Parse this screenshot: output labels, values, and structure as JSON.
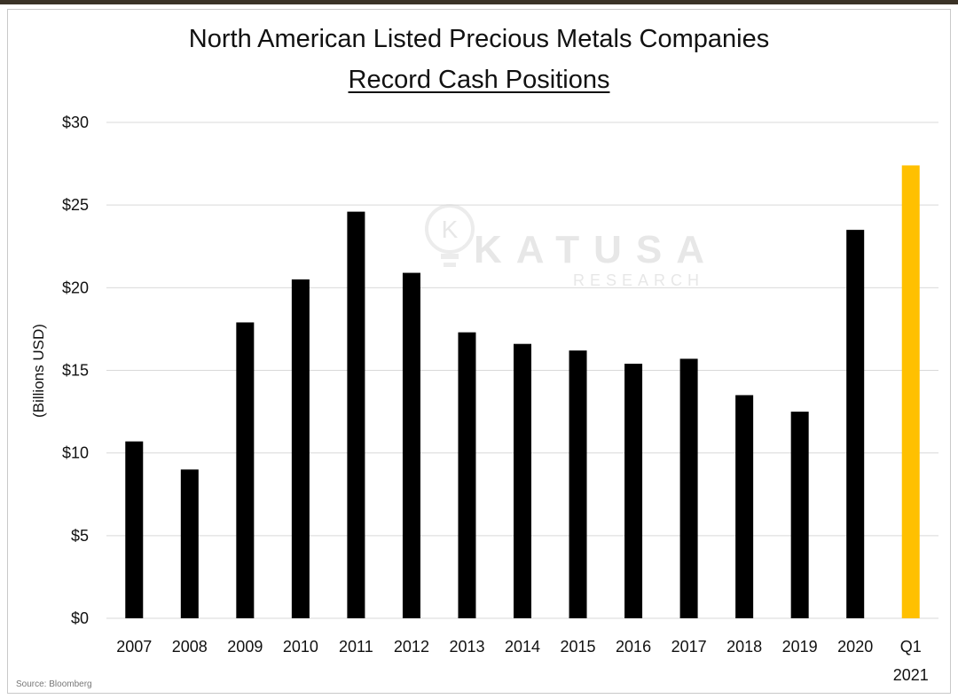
{
  "title_line1": "North American Listed Precious Metals Companies",
  "title_line2": "Record Cash Positions",
  "ylabel": "(Billions USD)",
  "source": "Source: Bloomberg",
  "watermark": {
    "brand": "KATUSA",
    "sub": "RESEARCH",
    "logo_letter": "K"
  },
  "colors": {
    "bar": "#000000",
    "highlight": "#ffc000",
    "grid": "#d9d9d9"
  },
  "chart_data": {
    "type": "bar",
    "title": "North American Listed Precious Metals Companies Record Cash Positions",
    "ylabel": "(Billions USD)",
    "xlabel": "",
    "categories": [
      "2007",
      "2008",
      "2009",
      "2010",
      "2011",
      "2012",
      "2013",
      "2014",
      "2015",
      "2016",
      "2017",
      "2018",
      "2019",
      "2020",
      "Q1 2021"
    ],
    "category_lines": [
      [
        "2007"
      ],
      [
        "2008"
      ],
      [
        "2009"
      ],
      [
        "2010"
      ],
      [
        "2011"
      ],
      [
        "2012"
      ],
      [
        "2013"
      ],
      [
        "2014"
      ],
      [
        "2015"
      ],
      [
        "2016"
      ],
      [
        "2017"
      ],
      [
        "2018"
      ],
      [
        "2019"
      ],
      [
        "2020"
      ],
      [
        "Q1",
        "2021"
      ]
    ],
    "values": [
      10.7,
      9.0,
      17.9,
      20.5,
      24.6,
      20.9,
      17.3,
      16.6,
      16.2,
      15.4,
      15.7,
      13.5,
      12.5,
      23.5,
      27.4
    ],
    "highlight_index": 14,
    "ylim": [
      0,
      30
    ],
    "yticks": [
      0,
      5,
      10,
      15,
      20,
      25,
      30
    ],
    "ytick_labels": [
      "$0",
      "$5",
      "$10",
      "$15",
      "$20",
      "$25",
      "$30"
    ],
    "grid": true
  }
}
